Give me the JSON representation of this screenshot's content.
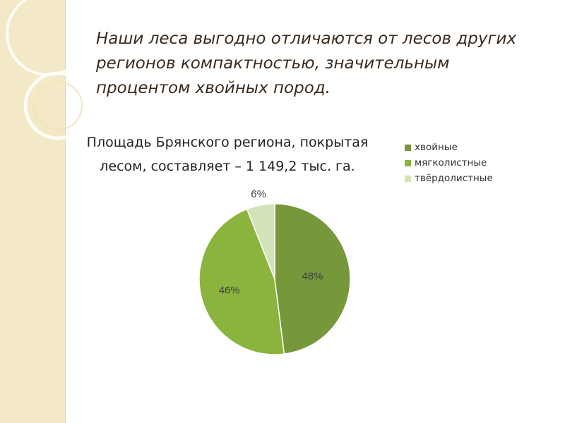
{
  "slide": {
    "title": "Наши леса выгодно отличаются от лесов других регионов компактностью, значительным процентом хвойных пород.",
    "subtitle_lines": [
      "Площадь Брянского региона, покрытая",
      "лесом, составляет – 1 149,2 тыс. га."
    ]
  },
  "theme": {
    "accent": "#3b2a1e",
    "side_band": "#f3e9c6"
  },
  "chart_data": {
    "type": "pie",
    "categories": [
      "хвойные",
      "мягколистные",
      "твёрдолистные"
    ],
    "values": [
      48,
      46,
      6
    ],
    "data_labels": [
      "48%",
      "46%",
      "6%"
    ],
    "colors": [
      "#76983a",
      "#8bb43e",
      "#d3e3b8"
    ],
    "legend_position": "top-right"
  }
}
